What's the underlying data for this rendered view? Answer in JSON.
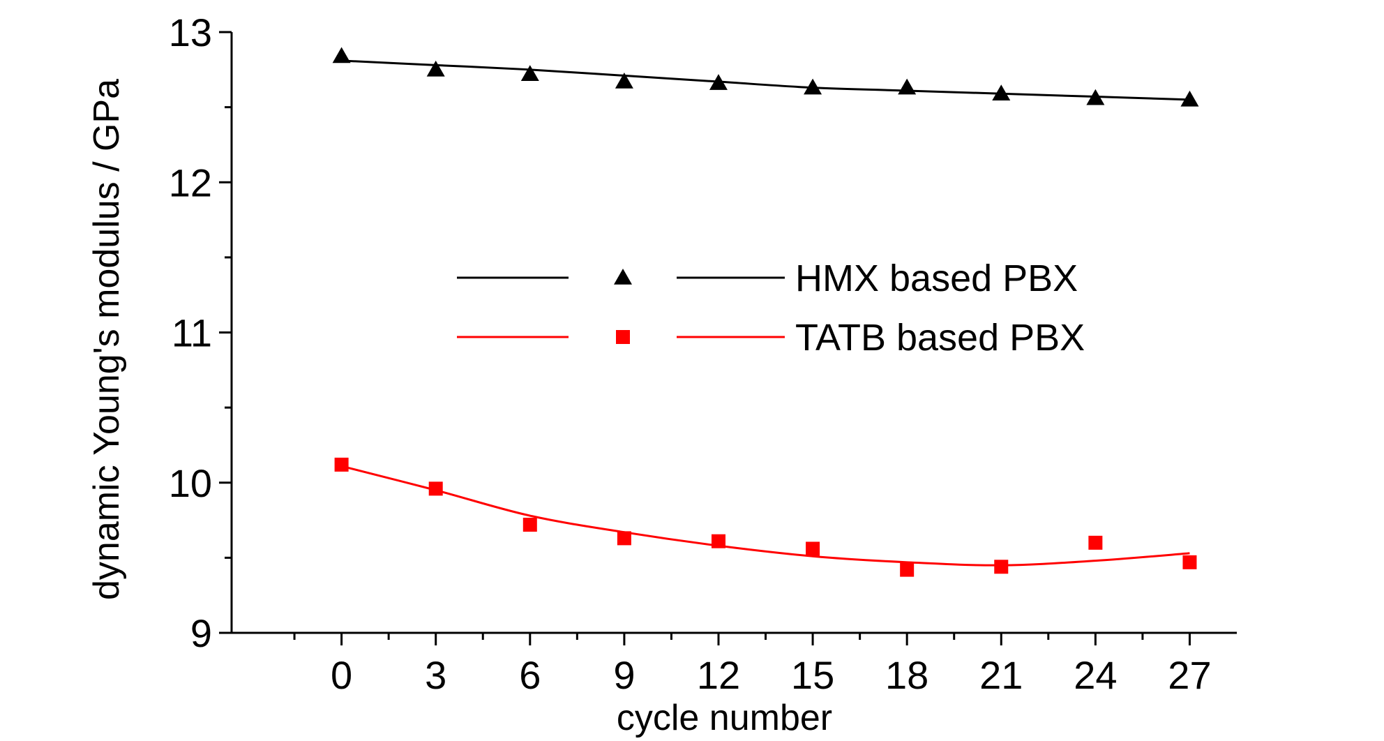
{
  "chart_data": {
    "type": "scatter",
    "xlabel": "cycle number",
    "ylabel": "dynamic Young's modulus / GPa",
    "xlim": [
      -3.5,
      28.5
    ],
    "ylim": [
      9,
      13
    ],
    "x_ticks": [
      0,
      3,
      6,
      9,
      12,
      15,
      18,
      21,
      24,
      27
    ],
    "y_ticks": [
      9,
      10,
      11,
      12,
      13
    ],
    "legend_position": "center-right",
    "series": [
      {
        "name": "HMX based PBX",
        "marker": "triangle",
        "color": "#000000",
        "x": [
          0,
          3,
          6,
          9,
          12,
          15,
          18,
          21,
          24,
          27
        ],
        "values": [
          12.84,
          12.75,
          12.72,
          12.67,
          12.66,
          12.63,
          12.63,
          12.59,
          12.56,
          12.55
        ],
        "fit_x": [
          0,
          3,
          6,
          9,
          12,
          15,
          18,
          21,
          24,
          27
        ],
        "fit_values": [
          12.81,
          12.78,
          12.75,
          12.71,
          12.67,
          12.63,
          12.61,
          12.59,
          12.57,
          12.55
        ]
      },
      {
        "name": "TATB based PBX",
        "marker": "square",
        "color": "#ff0000",
        "x": [
          0,
          3,
          6,
          9,
          12,
          15,
          18,
          21,
          24,
          27
        ],
        "values": [
          10.12,
          9.96,
          9.72,
          9.63,
          9.61,
          9.56,
          9.42,
          9.44,
          9.6,
          9.47
        ],
        "fit_x": [
          0,
          3,
          6,
          9,
          12,
          15,
          18,
          21,
          24,
          27
        ],
        "fit_values": [
          10.11,
          9.95,
          9.78,
          9.67,
          9.58,
          9.51,
          9.47,
          9.45,
          9.48,
          9.53
        ]
      }
    ]
  }
}
